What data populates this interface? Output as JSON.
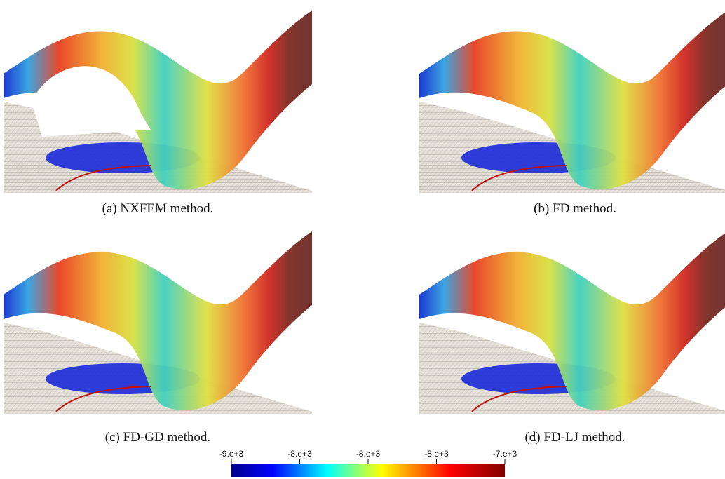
{
  "captions": [
    "(a) NXFEM method.",
    "(b) FD method.",
    "(c) FD-GD method.",
    "(d) FD-LJ method."
  ],
  "colorbar": {
    "tick_labels": [
      "-9.e+3",
      "-8.e+3",
      "-8.e+3",
      "-8.e+3",
      "-7.e+3"
    ]
  }
}
